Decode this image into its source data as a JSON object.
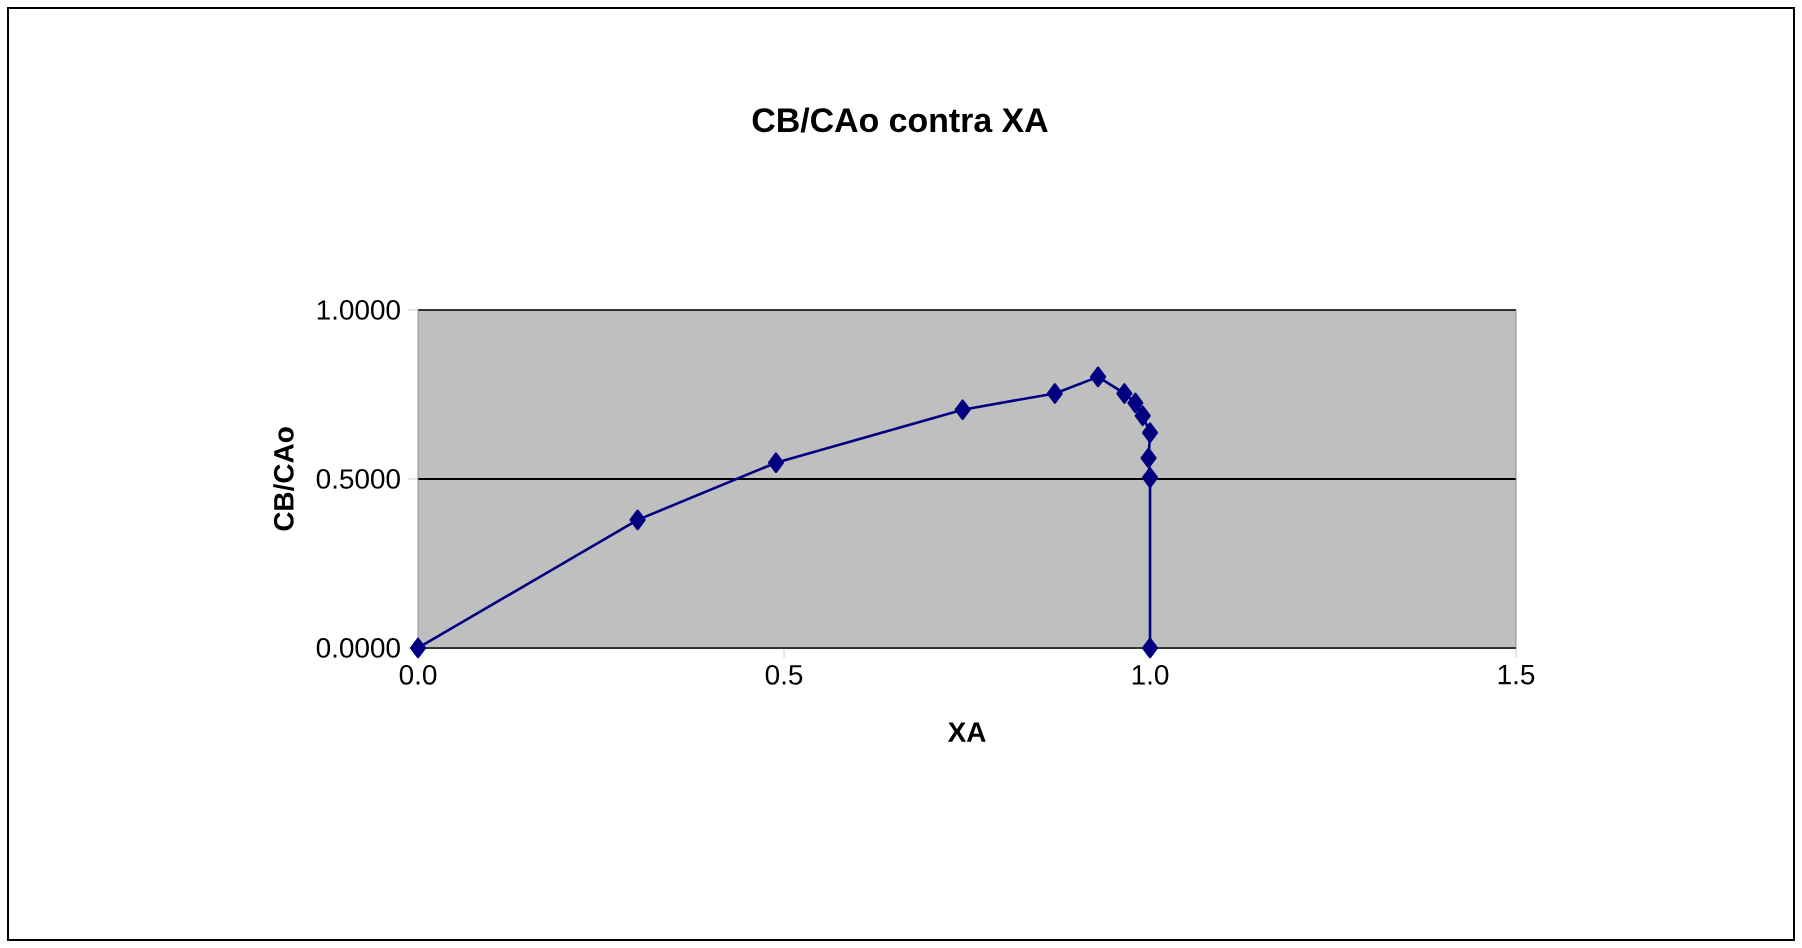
{
  "chart_data": {
    "type": "line",
    "title": "CB/CAo contra XA",
    "xlabel": "XA",
    "ylabel": "CB/CAo",
    "x": [
      0,
      0.3,
      0.489,
      0.744,
      0.87,
      0.929,
      0.965,
      0.98,
      0.99,
      1.0,
      0.998,
      1.0,
      1.0
    ],
    "series": [
      {
        "color": "#000080",
        "values": [
          0,
          0.379,
          0.548,
          0.705,
          0.753,
          0.802,
          0.753,
          0.725,
          0.687,
          0.637,
          0.562,
          0.504,
          0
        ]
      }
    ],
    "xlim": [
      0,
      1.5
    ],
    "ylim": [
      0,
      1
    ],
    "xticks": [
      {
        "value": 0,
        "label": "0.0"
      },
      {
        "value": 0.5,
        "label": "0.5"
      },
      {
        "value": 1.0,
        "label": "1.0"
      },
      {
        "value": 1.5,
        "label": "1.5"
      }
    ],
    "yticks": [
      {
        "value": 0,
        "label": "0.0000"
      },
      {
        "value": 0.5,
        "label": "0.5000"
      },
      {
        "value": 1.0,
        "label": "1.0000"
      }
    ],
    "grid": "y",
    "marker": "diamond",
    "line_style": "solid"
  }
}
